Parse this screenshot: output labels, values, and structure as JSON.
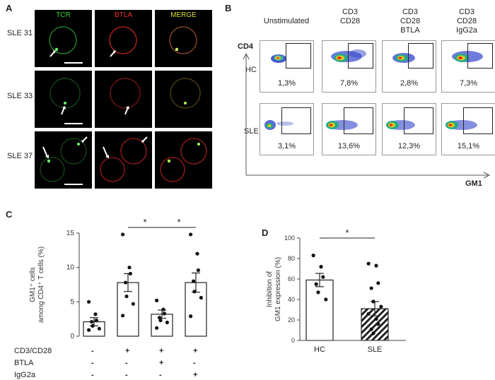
{
  "panels": {
    "A": "A",
    "B": "B",
    "C": "C",
    "D": "D"
  },
  "panelA": {
    "channels": [
      {
        "label": "TCR",
        "color": "#33dd33"
      },
      {
        "label": "BTLA",
        "color": "#ee3333"
      },
      {
        "label": "MERGE",
        "color": "#dddd33"
      }
    ],
    "rows": [
      "SLE 31",
      "SLE 33",
      "SLE 37"
    ]
  },
  "panelB": {
    "columns": [
      {
        "l1": "Unstimulated",
        "l2": "",
        "l3": "",
        "l4": ""
      },
      {
        "l1": "CD3",
        "l2": "CD28",
        "l3": "",
        "l4": ""
      },
      {
        "l1": "CD3",
        "l2": "CD28",
        "l3": "BTLA",
        "l4": ""
      },
      {
        "l1": "CD3",
        "l2": "CD28",
        "l3": "IgG2a",
        "l4": ""
      }
    ],
    "rows": [
      "HC",
      "SLE"
    ],
    "y_axis": "CD4",
    "x_axis": "GM1",
    "percentages": [
      [
        "1,3%",
        "7,8%",
        "2,8%",
        "7,3%"
      ],
      [
        "3,1%",
        "13,6%",
        "12,3%",
        "15,1%"
      ]
    ]
  },
  "panelC": {
    "treatment_labels": [
      "CD3/CD28",
      "BTLA",
      "IgG2a"
    ],
    "signs": [
      [
        "-",
        "+",
        "+",
        "+"
      ],
      [
        "-",
        "-",
        "+",
        "-"
      ],
      [
        "-",
        "-",
        "-",
        "+"
      ]
    ],
    "significance": [
      "*",
      "*"
    ]
  },
  "panelD": {},
  "chart_data": [
    {
      "panel": "C",
      "type": "bar",
      "categories": [
        "Unstimulated",
        "CD3/CD28",
        "CD3/CD28+BTLA",
        "CD3/CD28+IgG2a"
      ],
      "values": [
        2.1,
        7.8,
        3.2,
        7.8
      ],
      "sem": [
        0.6,
        1.3,
        0.6,
        1.4
      ],
      "points": [
        [
          5.0,
          3.2,
          2.3,
          2.1,
          1.5,
          1.1,
          0.9
        ],
        [
          14.8,
          10.0,
          9.1,
          7.8,
          5.8,
          4.7,
          3.0
        ],
        [
          5.2,
          3.9,
          3.3,
          2.7,
          2.3,
          2.0,
          1.2
        ],
        [
          14.8,
          12.0,
          9.6,
          8.0,
          6.5,
          5.6,
          2.9
        ]
      ],
      "ylabel": "GM1⁺ cells\namong CD4⁺ T cells (%)",
      "ylim": [
        0,
        15
      ],
      "yticks": [
        "0",
        "5",
        "10",
        "15"
      ],
      "significance": [
        {
          "from": 1,
          "to": 2,
          "label": "*"
        },
        {
          "from": 2,
          "to": 3,
          "label": "*"
        }
      ]
    },
    {
      "panel": "D",
      "type": "bar",
      "categories": [
        "HC",
        "SLE"
      ],
      "values": [
        59,
        31
      ],
      "sem": [
        6.5,
        7
      ],
      "points": [
        [
          83,
          72,
          62,
          55,
          47,
          40
        ],
        [
          75,
          73,
          56,
          51,
          38,
          33,
          26,
          21,
          16,
          11,
          7
        ]
      ],
      "ylabel": "Inhibition of\nGM1 expression (%)",
      "ylim": [
        0,
        100
      ],
      "yticks": [
        "0",
        "20",
        "40",
        "60",
        "80",
        "100"
      ],
      "significance": [
        {
          "from": 0,
          "to": 1,
          "label": "*"
        }
      ],
      "patterns": [
        "solid",
        "hatched"
      ]
    }
  ]
}
